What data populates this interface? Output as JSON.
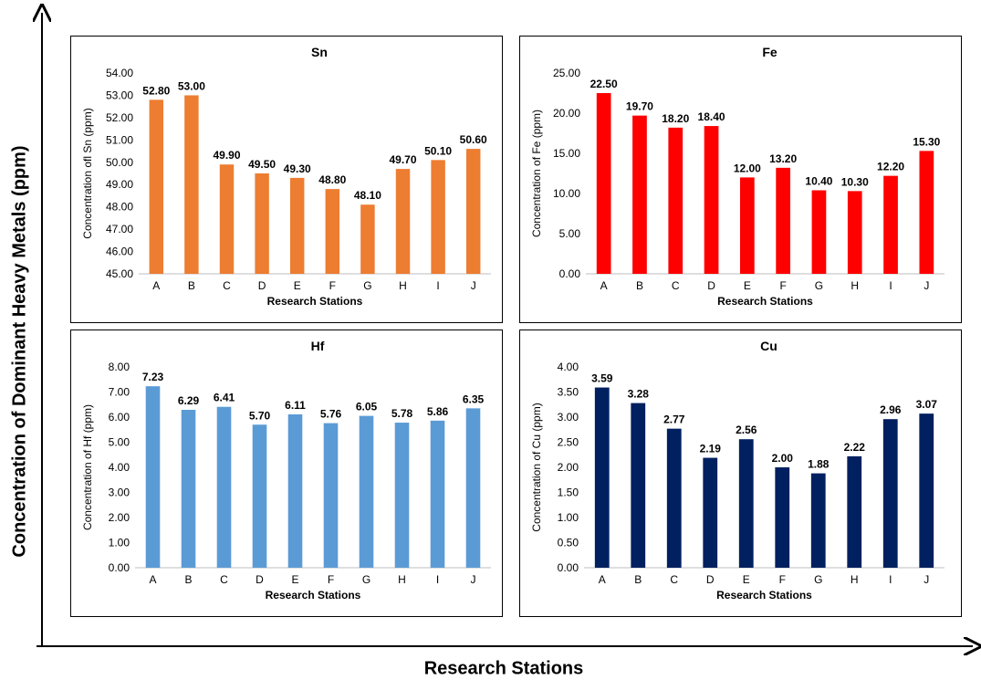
{
  "figure": {
    "ylabel": "Concentration of Dominant Heavy Metals (ppm)",
    "xlabel": "Research Stations"
  },
  "chart_data": [
    {
      "type": "bar",
      "title": "Sn",
      "categories": [
        "A",
        "B",
        "C",
        "D",
        "E",
        "F",
        "G",
        "H",
        "I",
        "J"
      ],
      "values": [
        52.8,
        53.0,
        49.9,
        49.5,
        49.3,
        48.8,
        48.1,
        49.7,
        50.1,
        50.6
      ],
      "ylim": [
        45,
        54
      ],
      "ystep": 1,
      "xlabel": "Research Stations",
      "ylabel": "Concentration ofl Sn (ppm)",
      "color": "#ED7D31",
      "grid": false
    },
    {
      "type": "bar",
      "title": "Fe",
      "categories": [
        "A",
        "B",
        "C",
        "D",
        "E",
        "F",
        "G",
        "H",
        "I",
        "J"
      ],
      "values": [
        22.5,
        19.7,
        18.2,
        18.4,
        12.0,
        13.2,
        10.4,
        10.3,
        12.2,
        15.3
      ],
      "ylim": [
        0,
        25
      ],
      "ystep": 5,
      "xlabel": "Research Stations",
      "ylabel": "Concentration of Fe (ppm)",
      "color": "#FF0000",
      "grid": false
    },
    {
      "type": "bar",
      "title": "Hf",
      "categories": [
        "A",
        "B",
        "C",
        "D",
        "E",
        "F",
        "G",
        "H",
        "I",
        "J"
      ],
      "values": [
        7.23,
        6.29,
        6.41,
        5.7,
        6.11,
        5.76,
        6.05,
        5.78,
        5.86,
        6.35
      ],
      "ylim": [
        0,
        8
      ],
      "ystep": 1,
      "xlabel": "Research Stations",
      "ylabel": "Concentration of Hf (ppm)",
      "color": "#5B9BD5",
      "grid": false
    },
    {
      "type": "bar",
      "title": "Cu",
      "categories": [
        "A",
        "B",
        "C",
        "D",
        "E",
        "F",
        "G",
        "H",
        "I",
        "J"
      ],
      "values": [
        3.59,
        3.28,
        2.77,
        2.19,
        2.56,
        2.0,
        1.88,
        2.22,
        2.96,
        3.07
      ],
      "ylim": [
        0,
        4
      ],
      "ystep": 0.5,
      "xlabel": "Research Stations",
      "ylabel": "Concentration of Cu (ppm)",
      "color": "#002060",
      "grid": false
    }
  ]
}
